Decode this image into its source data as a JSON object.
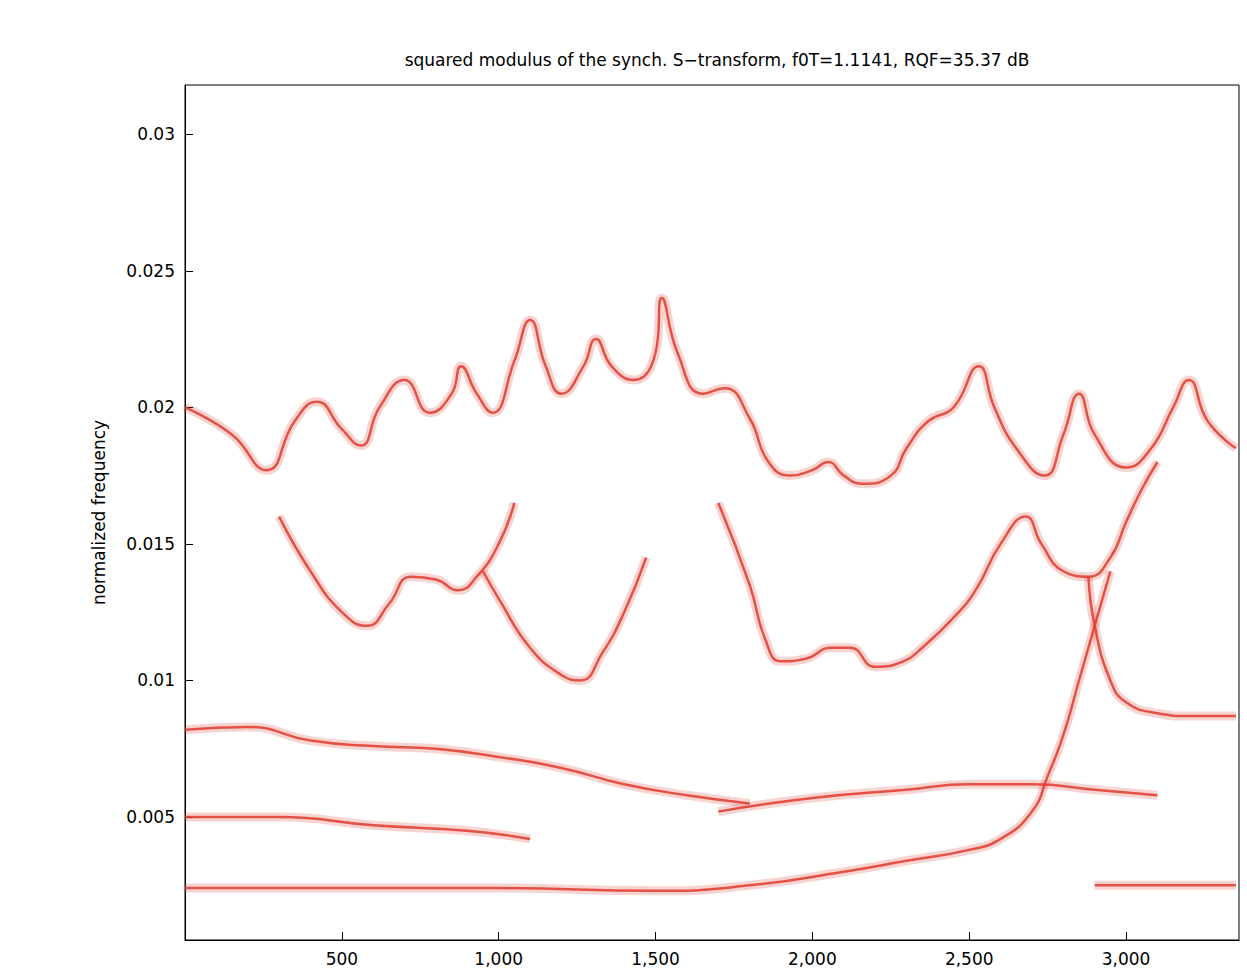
{
  "chart_data": {
    "type": "line",
    "title": "squared modulus of the synch. S−transform, f0T=1.1141, RQF=35.37 dB",
    "y_label": "normalized frequency",
    "color": "#e0392f",
    "grid": false,
    "xlim": [
      0,
      3360
    ],
    "xticks": [
      500,
      1000,
      1500,
      2000,
      2500,
      3000
    ],
    "ylim": [
      0.0005,
      0.0318
    ],
    "yticks": [
      0.005,
      0.01,
      0.015,
      0.02,
      0.025,
      0.03
    ],
    "series": [
      {
        "x": [
          0,
          150,
          260,
          350,
          420,
          500,
          560,
          620,
          700,
          780,
          850,
          880,
          930,
          980,
          1050,
          1100,
          1150,
          1200,
          1270,
          1310,
          1360,
          1430,
          1500,
          1520,
          1570,
          1650,
          1720,
          1800,
          1860,
          1930,
          2000,
          2050,
          2100,
          2160,
          2250,
          2300,
          2370,
          2450,
          2530,
          2580,
          2650,
          2740,
          2800,
          2850,
          2900,
          3000,
          3080,
          3150,
          3200,
          3260,
          3350
        ],
        "values": [
          0.02,
          0.019,
          0.0177,
          0.0195,
          0.0202,
          0.0192,
          0.0186,
          0.02,
          0.021,
          0.0198,
          0.0205,
          0.0215,
          0.0205,
          0.0198,
          0.0217,
          0.0232,
          0.0215,
          0.0205,
          0.0215,
          0.0225,
          0.0215,
          0.021,
          0.022,
          0.024,
          0.022,
          0.0205,
          0.0207,
          0.0196,
          0.018,
          0.0175,
          0.0177,
          0.018,
          0.0175,
          0.0172,
          0.0175,
          0.0185,
          0.0195,
          0.02,
          0.0215,
          0.02,
          0.0185,
          0.0175,
          0.019,
          0.0205,
          0.019,
          0.0178,
          0.0185,
          0.02,
          0.021,
          0.0195,
          0.0185
        ]
      },
      {
        "x": [
          300,
          400,
          500,
          580,
          650,
          720,
          800,
          870,
          930,
          1000,
          1050
        ],
        "values": [
          0.016,
          0.014,
          0.0125,
          0.012,
          0.0128,
          0.0138,
          0.0137,
          0.0133,
          0.0138,
          0.015,
          0.0165
        ]
      },
      {
        "x": [
          950,
          1000,
          1100,
          1200,
          1260,
          1330,
          1400,
          1470
        ],
        "values": [
          0.014,
          0.013,
          0.0112,
          0.0102,
          0.01,
          0.011,
          0.0125,
          0.0145
        ]
      },
      {
        "x": [
          1700,
          1800,
          1850,
          1900,
          1980,
          2060,
          2120,
          2200,
          2290,
          2350,
          2450,
          2520,
          2600,
          2680,
          2730,
          2800,
          2880,
          2950,
          3000,
          3050,
          3100
        ],
        "values": [
          0.0165,
          0.0135,
          0.0115,
          0.0107,
          0.0108,
          0.0112,
          0.0112,
          0.0105,
          0.0107,
          0.0112,
          0.0123,
          0.0133,
          0.015,
          0.016,
          0.015,
          0.014,
          0.0138,
          0.0145,
          0.0158,
          0.017,
          0.018
        ]
      },
      {
        "x": [
          2880,
          2900,
          2950,
          3000,
          3100,
          3200,
          3350
        ],
        "values": [
          0.0138,
          0.012,
          0.01,
          0.0092,
          0.0088,
          0.0087,
          0.0087
        ]
      },
      {
        "x": [
          0,
          200,
          400,
          600,
          800,
          1000,
          1200,
          1400,
          1600,
          1800
        ],
        "values": [
          0.0082,
          0.0083,
          0.0078,
          0.0076,
          0.0075,
          0.0072,
          0.0068,
          0.0062,
          0.0058,
          0.0055
        ]
      },
      {
        "x": [
          0,
          300,
          600,
          900,
          1100
        ],
        "values": [
          0.005,
          0.005,
          0.0047,
          0.0045,
          0.0042
        ]
      },
      {
        "x": [
          1700,
          2000,
          2300,
          2500,
          2700,
          2900,
          3100
        ],
        "values": [
          0.0052,
          0.0057,
          0.006,
          0.0062,
          0.0062,
          0.006,
          0.0058
        ]
      },
      {
        "x": [
          0,
          500,
          1000,
          1500,
          1800,
          2100,
          2300,
          2500,
          2600,
          2700,
          2750,
          2800,
          2850,
          2900,
          2950
        ],
        "values": [
          0.0024,
          0.0024,
          0.0024,
          0.0023,
          0.0025,
          0.003,
          0.0034,
          0.0038,
          0.0042,
          0.0052,
          0.0065,
          0.008,
          0.01,
          0.012,
          0.014
        ]
      },
      {
        "x": [
          2900,
          3350
        ],
        "values": [
          0.0025,
          0.0025
        ]
      }
    ]
  }
}
